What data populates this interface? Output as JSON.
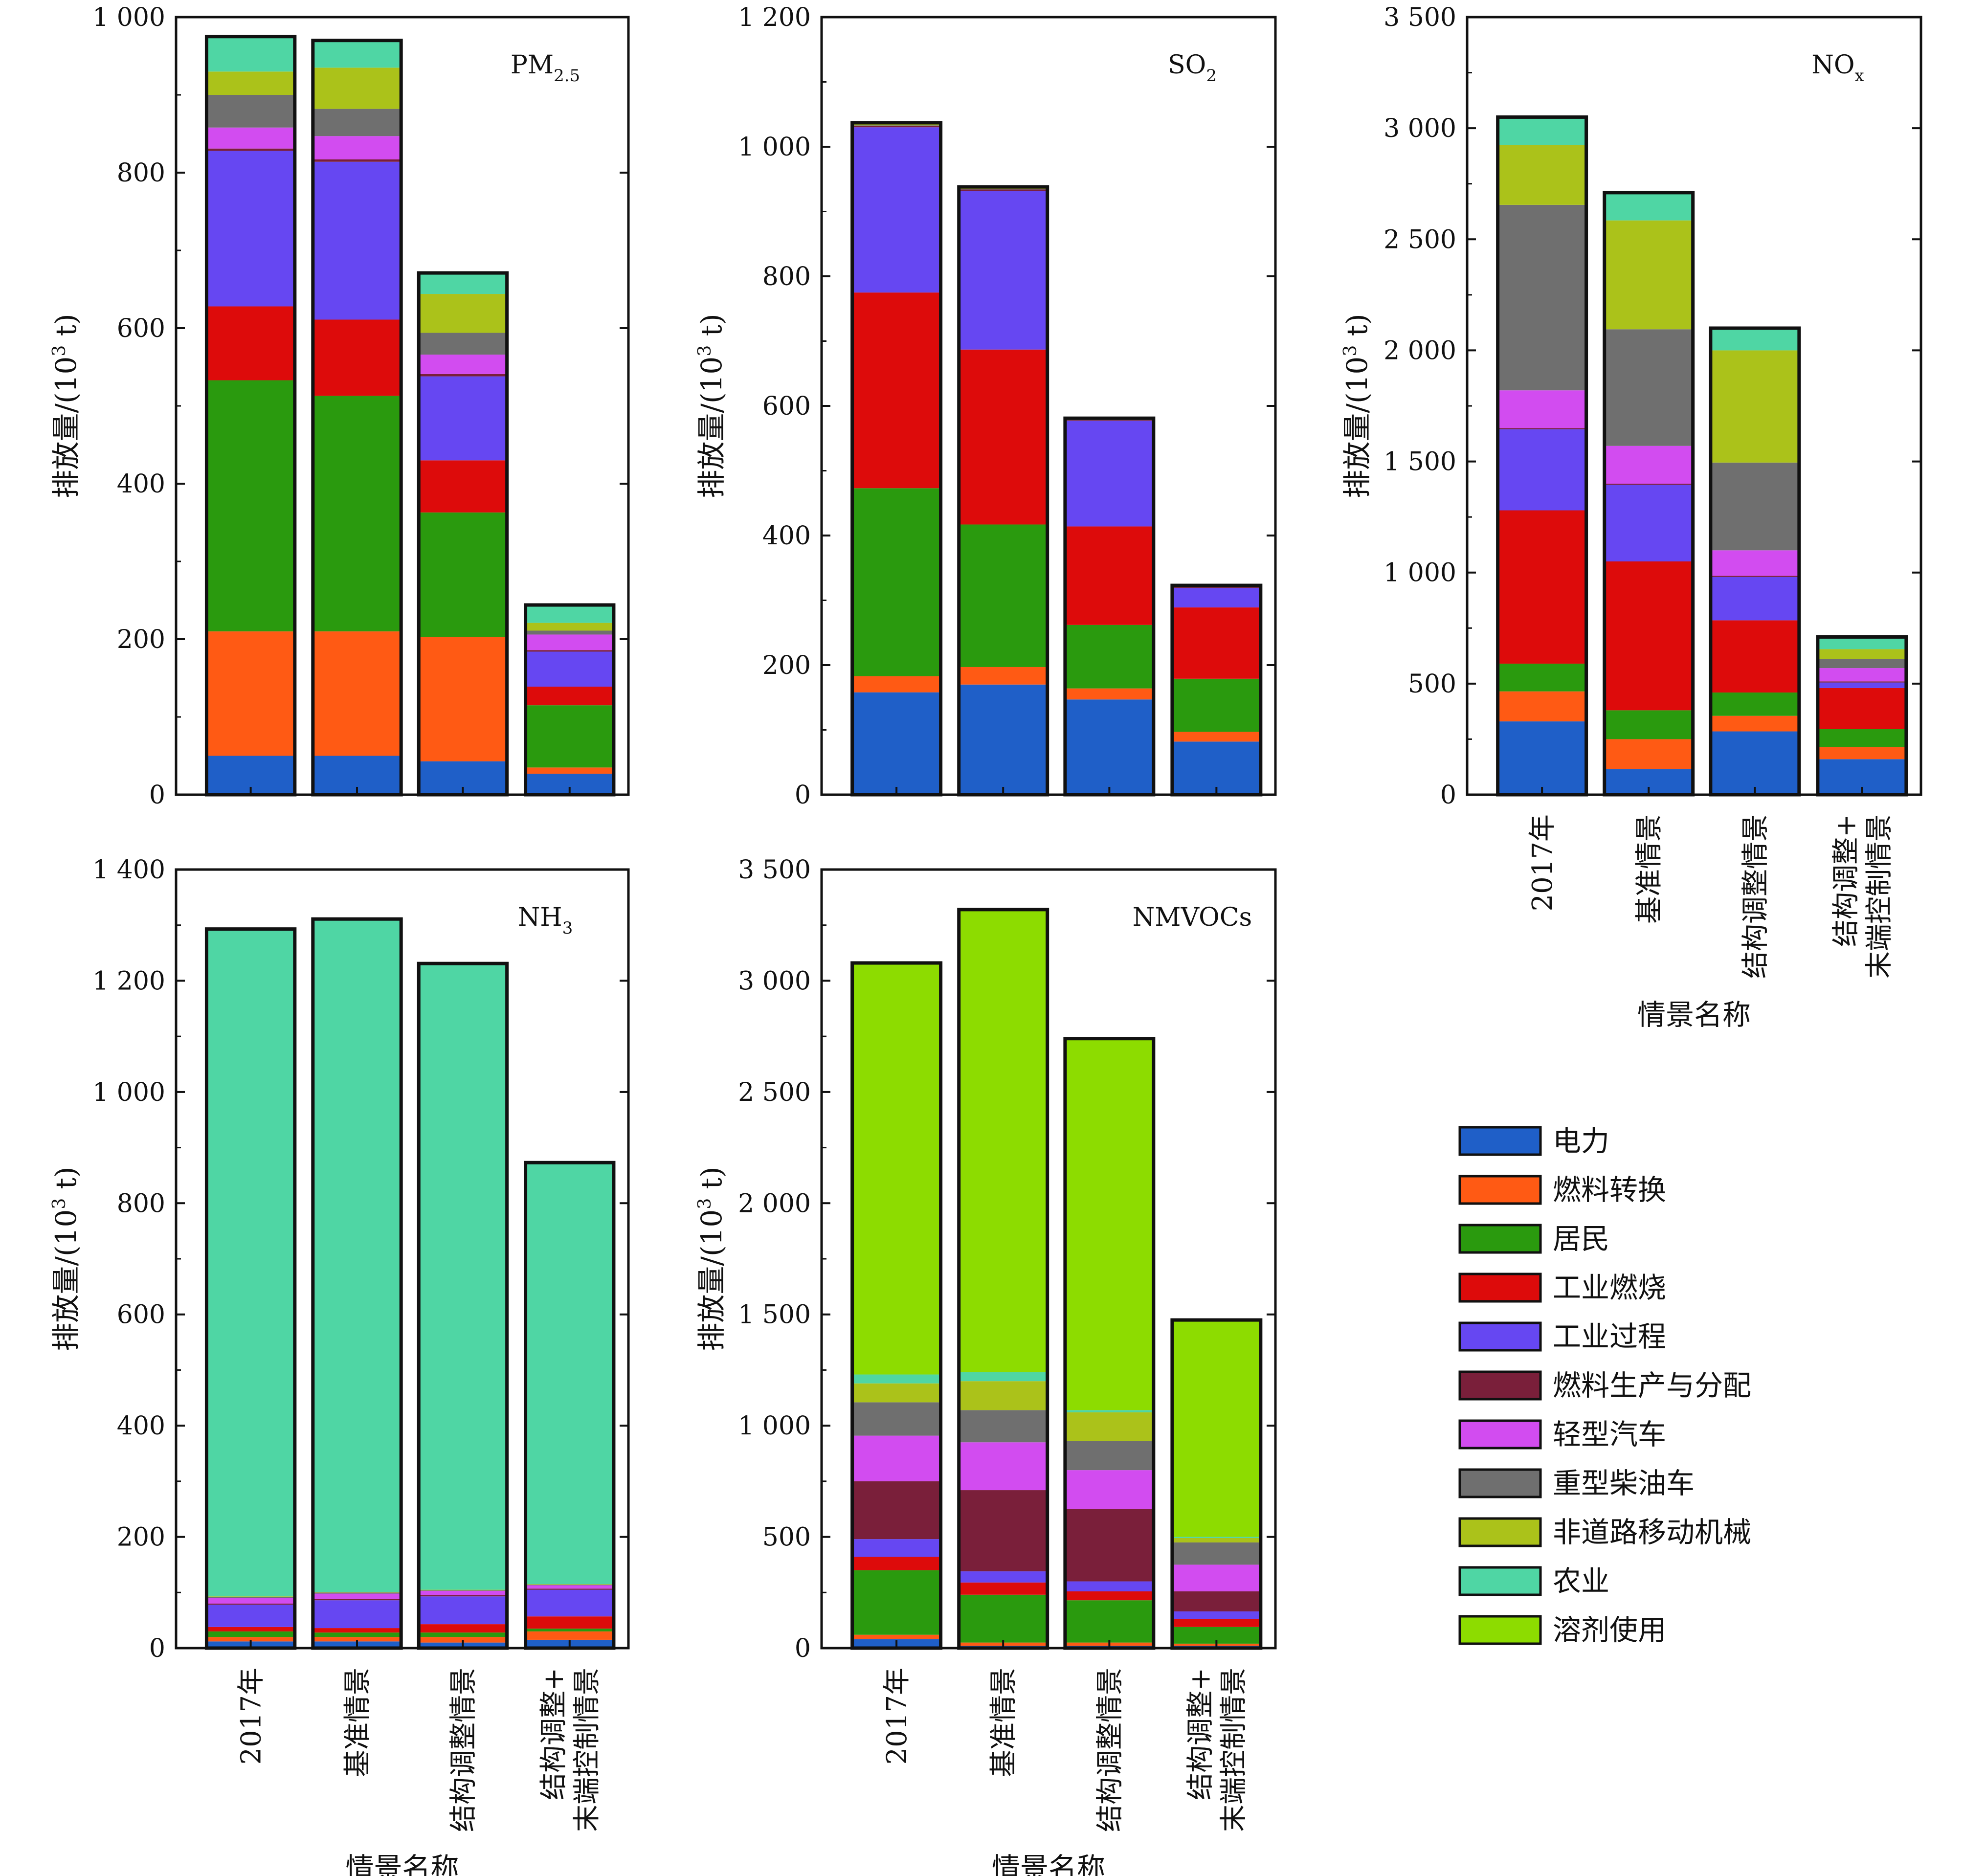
{
  "legend": {
    "items": [
      {
        "label": "电力",
        "color": "#1f5fc8"
      },
      {
        "label": "燃料转换",
        "color": "#ff5a14"
      },
      {
        "label": "居民",
        "color": "#2a9a0e"
      },
      {
        "label": "工业燃烧",
        "color": "#dd0b0b"
      },
      {
        "label": "工业过程",
        "color": "#6647f2"
      },
      {
        "label": "燃料生产与分配",
        "color": "#7a1f3a"
      },
      {
        "label": "轻型汽车",
        "color": "#d24cf0"
      },
      {
        "label": "重型柴油车",
        "color": "#6f6f6f"
      },
      {
        "label": "非道路移动机械",
        "color": "#abc21a"
      },
      {
        "label": "农业",
        "color": "#4fd6a4"
      },
      {
        "label": "溶剂使用",
        "color": "#8ddc00"
      }
    ]
  },
  "chart_data": [
    {
      "id": "pm25",
      "type": "bar",
      "stacked": true,
      "title": "PM",
      "title_sub": "2.5",
      "ylabel_main": "排放量/(10",
      "ylabel_sup": "3",
      "ylabel_tail": " t)",
      "xlabel": "",
      "ylim": [
        0,
        1000
      ],
      "yticks": [
        0,
        200,
        400,
        600,
        800,
        1000
      ],
      "ytick_labels": [
        "0",
        "200",
        "400",
        "600",
        "800",
        "1 000"
      ],
      "categories": [
        [
          "2017年"
        ],
        [
          "基准情景"
        ],
        [
          "结构调整情景"
        ],
        [
          "结构调整+",
          "末端控制情景"
        ]
      ],
      "show_categories": false,
      "series": [
        {
          "name": "电力",
          "values": [
            50,
            50,
            43,
            27
          ]
        },
        {
          "name": "燃料转换",
          "values": [
            160,
            160,
            160,
            8
          ]
        },
        {
          "name": "居民",
          "values": [
            323,
            303,
            160,
            80
          ]
        },
        {
          "name": "工业燃烧",
          "values": [
            95,
            98,
            67,
            24
          ]
        },
        {
          "name": "工业过程",
          "values": [
            200,
            203,
            108,
            45
          ]
        },
        {
          "name": "燃料生产与分配",
          "values": [
            3,
            3,
            3,
            2
          ]
        },
        {
          "name": "轻型汽车",
          "values": [
            27,
            30,
            25,
            20
          ]
        },
        {
          "name": "重型柴油车",
          "values": [
            42,
            35,
            28,
            5
          ]
        },
        {
          "name": "非道路移动机械",
          "values": [
            30,
            53,
            50,
            10
          ]
        },
        {
          "name": "农业",
          "values": [
            45,
            35,
            27,
            23
          ]
        },
        {
          "name": "溶剂使用",
          "values": [
            0,
            0,
            0,
            0
          ]
        }
      ]
    },
    {
      "id": "so2",
      "type": "bar",
      "stacked": true,
      "title": "SO",
      "title_sub": "2",
      "ylabel_main": "排放量/(10",
      "ylabel_sup": "3",
      "ylabel_tail": " t)",
      "xlabel": "",
      "ylim": [
        0,
        1200
      ],
      "yticks": [
        0,
        200,
        400,
        600,
        800,
        1000,
        1200
      ],
      "ytick_labels": [
        "0",
        "200",
        "400",
        "600",
        "800",
        "1 000",
        "1 200"
      ],
      "categories": [
        [
          "2017年"
        ],
        [
          "基准情景"
        ],
        [
          "结构调整情景"
        ],
        [
          "结构调整+",
          "末端控制情景"
        ]
      ],
      "show_categories": false,
      "series": [
        {
          "name": "电力",
          "values": [
            158,
            170,
            147,
            82
          ]
        },
        {
          "name": "燃料转换",
          "values": [
            25,
            27,
            17,
            15
          ]
        },
        {
          "name": "居民",
          "values": [
            290,
            220,
            98,
            82
          ]
        },
        {
          "name": "工业燃烧",
          "values": [
            302,
            270,
            152,
            110
          ]
        },
        {
          "name": "工业过程",
          "values": [
            255,
            245,
            163,
            30
          ]
        },
        {
          "name": "燃料生产与分配",
          "values": [
            2,
            2,
            1,
            1
          ]
        },
        {
          "name": "轻型汽车",
          "values": [
            0,
            0,
            0,
            0
          ]
        },
        {
          "name": "重型柴油车",
          "values": [
            1,
            1,
            1,
            1
          ]
        },
        {
          "name": "非道路移动机械",
          "values": [
            4,
            3,
            2,
            2
          ]
        },
        {
          "name": "农业",
          "values": [
            0,
            0,
            0,
            0
          ]
        },
        {
          "name": "溶剂使用",
          "values": [
            0,
            0,
            0,
            0
          ]
        }
      ]
    },
    {
      "id": "nox",
      "type": "bar",
      "stacked": true,
      "title": "NO",
      "title_sub": "x",
      "ylabel_main": "排放量/(10",
      "ylabel_sup": "3",
      "ylabel_tail": " t)",
      "xlabel": "情景名称",
      "ylim": [
        0,
        3500
      ],
      "yticks": [
        0,
        500,
        1000,
        1500,
        2000,
        2500,
        3000,
        3500
      ],
      "ytick_labels": [
        "0",
        "500",
        "1 000",
        "1 500",
        "2 000",
        "2 500",
        "3 000",
        "3 500"
      ],
      "categories": [
        [
          "2017年"
        ],
        [
          "基准情景"
        ],
        [
          "结构调整情景"
        ],
        [
          "结构调整+",
          "末端控制情景"
        ]
      ],
      "show_categories": true,
      "series": [
        {
          "name": "电力",
          "values": [
            330,
            115,
            285,
            160
          ]
        },
        {
          "name": "燃料转换",
          "values": [
            135,
            135,
            70,
            55
          ]
        },
        {
          "name": "居民",
          "values": [
            125,
            130,
            105,
            80
          ]
        },
        {
          "name": "工业燃烧",
          "values": [
            690,
            670,
            325,
            185
          ]
        },
        {
          "name": "工业过程",
          "values": [
            365,
            345,
            195,
            25
          ]
        },
        {
          "name": "燃料生产与分配",
          "values": [
            5,
            5,
            5,
            5
          ]
        },
        {
          "name": "轻型汽车",
          "values": [
            170,
            170,
            115,
            60
          ]
        },
        {
          "name": "重型柴油车",
          "values": [
            835,
            525,
            395,
            40
          ]
        },
        {
          "name": "非道路移动机械",
          "values": [
            270,
            490,
            505,
            45
          ]
        },
        {
          "name": "农业",
          "values": [
            125,
            125,
            100,
            55
          ]
        },
        {
          "name": "溶剂使用",
          "values": [
            0,
            0,
            0,
            0
          ]
        }
      ]
    },
    {
      "id": "nh3",
      "type": "bar",
      "stacked": true,
      "title": "NH",
      "title_sub": "3",
      "ylabel_main": "排放量/(10",
      "ylabel_sup": "3",
      "ylabel_tail": " t)",
      "xlabel": "情景名称",
      "ylim": [
        0,
        1400
      ],
      "yticks": [
        0,
        200,
        400,
        600,
        800,
        1000,
        1200,
        1400
      ],
      "ytick_labels": [
        "0",
        "200",
        "400",
        "600",
        "800",
        "1 000",
        "1 200",
        "1 400"
      ],
      "categories": [
        [
          "2017年"
        ],
        [
          "基准情景"
        ],
        [
          "结构调整情景"
        ],
        [
          "结构调整+",
          "末端控制情景"
        ]
      ],
      "show_categories": true,
      "series": [
        {
          "name": "电力",
          "values": [
            12,
            12,
            10,
            15
          ]
        },
        {
          "name": "燃料转换",
          "values": [
            8,
            8,
            10,
            15
          ]
        },
        {
          "name": "居民",
          "values": [
            10,
            8,
            8,
            5
          ]
        },
        {
          "name": "工业燃烧",
          "values": [
            8,
            8,
            15,
            22
          ]
        },
        {
          "name": "工业过程",
          "values": [
            40,
            50,
            50,
            48
          ]
        },
        {
          "name": "燃料生产与分配",
          "values": [
            2,
            2,
            2,
            2
          ]
        },
        {
          "name": "轻型汽车",
          "values": [
            10,
            10,
            8,
            6
          ]
        },
        {
          "name": "重型柴油车",
          "values": [
            2,
            2,
            1,
            1
          ]
        },
        {
          "name": "非道路移动机械",
          "values": [
            1,
            1,
            1,
            1
          ]
        },
        {
          "name": "农业",
          "values": [
            1200,
            1210,
            1126,
            758
          ]
        },
        {
          "name": "溶剂使用",
          "values": [
            0,
            0,
            0,
            0
          ]
        }
      ]
    },
    {
      "id": "nmvocs",
      "type": "bar",
      "stacked": true,
      "title": "NMVOCs",
      "title_sub": "",
      "ylabel_main": "排放量/(10",
      "ylabel_sup": "3",
      "ylabel_tail": " t)",
      "xlabel": "情景名称",
      "ylim": [
        0,
        3500
      ],
      "yticks": [
        0,
        500,
        1000,
        1500,
        2000,
        2500,
        3000,
        3500
      ],
      "ytick_labels": [
        "0",
        "500",
        "1 000",
        "1 500",
        "2 000",
        "2 500",
        "3 000",
        "3 500"
      ],
      "categories": [
        [
          "2017年"
        ],
        [
          "基准情景"
        ],
        [
          "结构调整情景"
        ],
        [
          "结构调整+",
          "末端控制情景"
        ]
      ],
      "show_categories": true,
      "series": [
        {
          "name": "电力",
          "values": [
            40,
            10,
            10,
            10
          ]
        },
        {
          "name": "燃料转换",
          "values": [
            20,
            15,
            15,
            10
          ]
        },
        {
          "name": "居民",
          "values": [
            290,
            215,
            190,
            75
          ]
        },
        {
          "name": "工业燃烧",
          "values": [
            60,
            55,
            40,
            35
          ]
        },
        {
          "name": "工业过程",
          "values": [
            80,
            50,
            45,
            35
          ]
        },
        {
          "name": "燃料生产与分配",
          "values": [
            260,
            365,
            325,
            90
          ]
        },
        {
          "name": "轻型汽车",
          "values": [
            205,
            215,
            175,
            120
          ]
        },
        {
          "name": "重型柴油车",
          "values": [
            150,
            145,
            130,
            100
          ]
        },
        {
          "name": "非道路移动机械",
          "values": [
            85,
            130,
            130,
            20
          ]
        },
        {
          "name": "农业",
          "values": [
            40,
            40,
            10,
            5
          ]
        },
        {
          "name": "溶剂使用",
          "values": [
            1850,
            2080,
            1670,
            975
          ]
        }
      ]
    }
  ]
}
